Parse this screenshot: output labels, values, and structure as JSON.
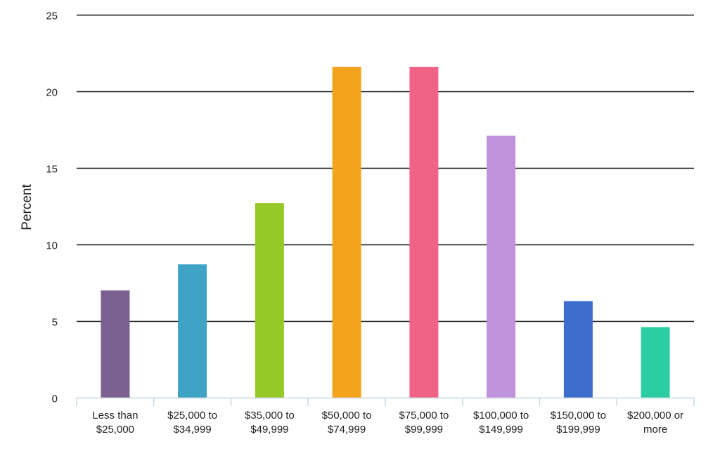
{
  "chart_data": {
    "type": "bar",
    "title": "",
    "xlabel": "",
    "ylabel": "Percent",
    "ylim": [
      0,
      25
    ],
    "yticks": [
      0,
      5,
      10,
      15,
      20,
      25
    ],
    "grid": true,
    "legend": "none",
    "categories": [
      [
        "Less than",
        "$25,000"
      ],
      [
        "$25,000 to",
        "$34,999"
      ],
      [
        "$35,000 to",
        "$49,999"
      ],
      [
        "$50,000 to",
        "$74,999"
      ],
      [
        "$75,000 to",
        "$99,999"
      ],
      [
        "$100,000 to",
        "$149,999"
      ],
      [
        "$150,000 to",
        "$199,999"
      ],
      [
        "$200,000 or",
        "more"
      ]
    ],
    "values": [
      7.0,
      8.7,
      12.7,
      21.6,
      21.6,
      17.1,
      6.3,
      4.6
    ],
    "colors": [
      "#7b6190",
      "#3ea3c4",
      "#95c928",
      "#f4a31c",
      "#f06387",
      "#bf92db",
      "#3d6ece",
      "#2bcea3"
    ]
  }
}
